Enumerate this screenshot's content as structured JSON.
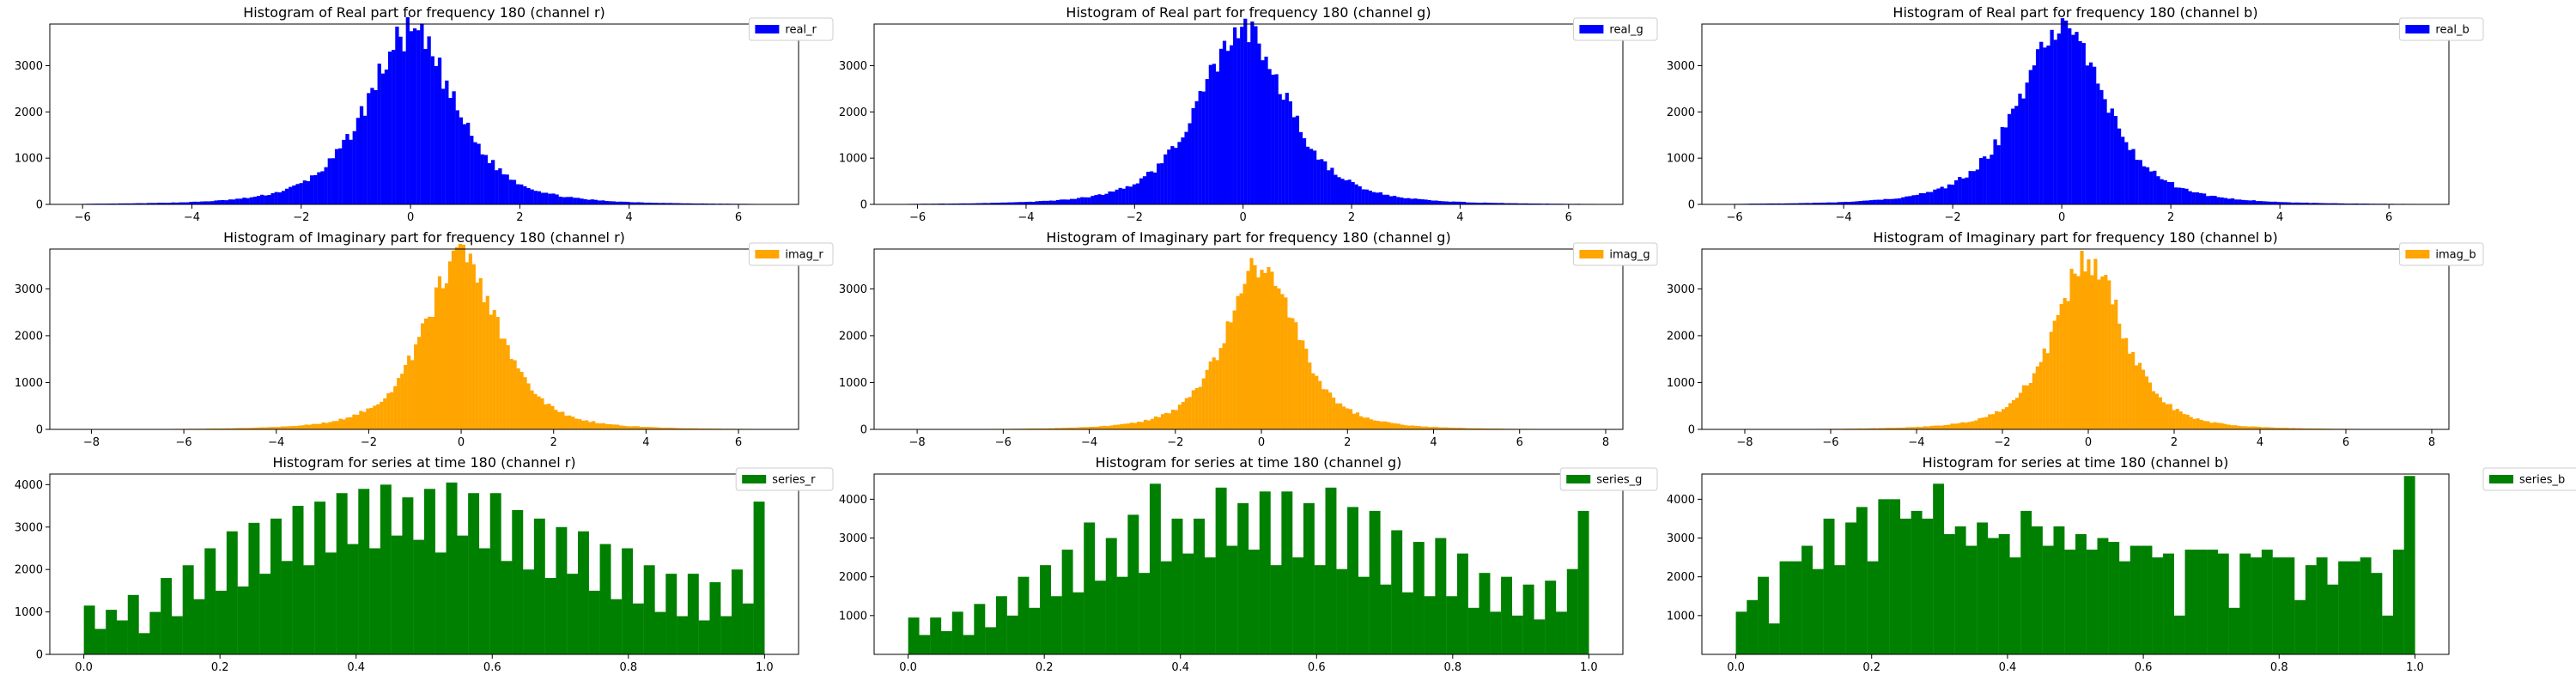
{
  "chart_data": [
    {
      "type": "bar",
      "title": "Histogram of Real part for frequency 180 (channel r)",
      "xlabel": "",
      "ylabel": "",
      "xlim": [
        -6.6,
        7.1
      ],
      "ylim": [
        0,
        3900
      ],
      "xticks": [
        -6,
        -4,
        -2,
        0,
        2,
        4,
        6
      ],
      "yticks": [
        0,
        1000,
        2000,
        3000
      ],
      "color": "#0000ff",
      "legend": {
        "label": "real_r",
        "position": "top-right"
      },
      "distribution": {
        "kind": "normal",
        "center": 0.0,
        "spread": 0.85,
        "peak": 3700,
        "range": [
          -6.0,
          7.0
        ],
        "bins": 200,
        "peaks_near_center": [
          3650,
          3700,
          3600,
          3500,
          3400
        ]
      }
    },
    {
      "type": "bar",
      "title": "Histogram of Real part for frequency 180 (channel g)",
      "xlabel": "",
      "ylabel": "",
      "xlim": [
        -6.8,
        7.0
      ],
      "ylim": [
        0,
        3900
      ],
      "xticks": [
        -6,
        -4,
        -2,
        0,
        2,
        4,
        6
      ],
      "yticks": [
        0,
        1000,
        2000,
        3000
      ],
      "color": "#0000ff",
      "legend": {
        "label": "real_g",
        "position": "top-right"
      },
      "distribution": {
        "kind": "normal",
        "center": 0.0,
        "spread": 0.85,
        "peak": 3750,
        "range": [
          -6.2,
          6.6
        ],
        "bins": 200,
        "peaks_near_center": [
          3750,
          3650,
          3550,
          3450,
          3300
        ]
      }
    },
    {
      "type": "bar",
      "title": "Histogram of Real part for frequency 180 (channel b)",
      "xlabel": "",
      "ylabel": "",
      "xlim": [
        -6.6,
        7.1
      ],
      "ylim": [
        0,
        3900
      ],
      "xticks": [
        -6,
        -4,
        -2,
        0,
        2,
        4,
        6
      ],
      "yticks": [
        0,
        1000,
        2000,
        3000
      ],
      "color": "#0000ff",
      "legend": {
        "label": "real_b",
        "position": "top-right"
      },
      "distribution": {
        "kind": "normal",
        "center": 0.0,
        "spread": 0.85,
        "peak": 3700,
        "range": [
          -6.0,
          7.0
        ],
        "bins": 200,
        "peaks_near_center": [
          3700,
          3600,
          3500,
          3400,
          3300
        ]
      }
    },
    {
      "type": "bar",
      "title": "Histogram of Imaginary part for frequency 180 (channel r)",
      "xlabel": "",
      "ylabel": "",
      "xlim": [
        -8.9,
        7.3
      ],
      "ylim": [
        0,
        3850
      ],
      "xticks": [
        -8,
        -6,
        -4,
        -2,
        0,
        2,
        4,
        6
      ],
      "yticks": [
        0,
        1000,
        2000,
        3000
      ],
      "color": "#ffa500",
      "legend": {
        "label": "imag_r",
        "position": "top-right"
      },
      "distribution": {
        "kind": "normal",
        "center": 0.0,
        "spread": 0.85,
        "peak": 3650,
        "range": [
          -8.2,
          6.6
        ],
        "bins": 200,
        "peaks_near_center": [
          3650,
          3550,
          3450,
          3350,
          3250
        ]
      }
    },
    {
      "type": "bar",
      "title": "Histogram of Imaginary part for frequency 180 (channel g)",
      "xlabel": "",
      "ylabel": "",
      "xlim": [
        -9.0,
        8.4
      ],
      "ylim": [
        0,
        3850
      ],
      "xticks": [
        -8,
        -6,
        -4,
        -2,
        0,
        2,
        4,
        6,
        8
      ],
      "yticks": [
        0,
        1000,
        2000,
        3000
      ],
      "color": "#ffa500",
      "legend": {
        "label": "imag_g",
        "position": "top-right"
      },
      "distribution": {
        "kind": "normal",
        "center": 0.0,
        "spread": 0.85,
        "peak": 3600,
        "range": [
          -8.3,
          7.6
        ],
        "bins": 200,
        "peaks_near_center": [
          3600,
          3550,
          3500,
          3400,
          3300
        ]
      }
    },
    {
      "type": "bar",
      "title": "Histogram of Imaginary part for frequency 180 (channel b)",
      "xlabel": "",
      "ylabel": "",
      "xlim": [
        -9.0,
        8.4
      ],
      "ylim": [
        0,
        3850
      ],
      "xticks": [
        -8,
        -6,
        -4,
        -2,
        0,
        2,
        4,
        6,
        8
      ],
      "yticks": [
        0,
        1000,
        2000,
        3000
      ],
      "color": "#ffa500",
      "legend": {
        "label": "imag_b",
        "position": "top-right"
      },
      "distribution": {
        "kind": "normal",
        "center": 0.0,
        "spread": 0.85,
        "peak": 3600,
        "range": [
          -8.3,
          7.6
        ],
        "bins": 200,
        "peaks_near_center": [
          3600,
          3550,
          3450,
          3350,
          3250
        ]
      }
    },
    {
      "type": "bar",
      "title": "Histogram for series at time 180 (channel r)",
      "xlabel": "",
      "ylabel": "",
      "xlim": [
        -0.05,
        1.05
      ],
      "ylim": [
        0,
        4250
      ],
      "xticks": [
        0.0,
        0.2,
        0.4,
        0.6,
        0.8,
        1.0
      ],
      "yticks": [
        0,
        1000,
        2000,
        3000,
        4000
      ],
      "color": "#008000",
      "legend": {
        "label": "series_r",
        "position": "top-right"
      },
      "bin_range": [
        0.0,
        1.0
      ],
      "values": [
        1150,
        600,
        1050,
        800,
        1400,
        500,
        1000,
        1800,
        900,
        2100,
        1300,
        2500,
        1500,
        2900,
        1600,
        3100,
        1900,
        3200,
        2200,
        3500,
        2100,
        3600,
        2400,
        3800,
        2600,
        3900,
        2500,
        4000,
        2800,
        3700,
        2700,
        3900,
        2400,
        4050,
        2800,
        3800,
        2500,
        3800,
        2200,
        3400,
        2000,
        3200,
        1800,
        3000,
        1900,
        2900,
        1500,
        2600,
        1300,
        2500,
        1200,
        2100,
        1000,
        1900,
        900,
        1900,
        800,
        1700,
        900,
        2000,
        1200,
        3600
      ]
    },
    {
      "type": "bar",
      "title": "Histogram for series at time 180 (channel g)",
      "xlabel": "",
      "ylabel": "",
      "xlim": [
        -0.05,
        1.05
      ],
      "ylim": [
        0,
        4650
      ],
      "xticks": [
        0.0,
        0.2,
        0.4,
        0.6,
        0.8,
        1.0
      ],
      "yticks": [
        1000,
        2000,
        3000,
        4000
      ],
      "color": "#008000",
      "legend": {
        "label": "series_g",
        "position": "top-right"
      },
      "bin_range": [
        0.0,
        1.0
      ],
      "values": [
        950,
        500,
        950,
        600,
        1100,
        500,
        1300,
        700,
        1500,
        1000,
        2000,
        1200,
        2300,
        1500,
        2700,
        1600,
        3400,
        1900,
        3000,
        2000,
        3600,
        2100,
        4400,
        2400,
        3500,
        2600,
        3500,
        2500,
        4300,
        2800,
        3900,
        2700,
        4200,
        2300,
        4200,
        2500,
        3900,
        2300,
        4300,
        2200,
        3800,
        2000,
        3700,
        1800,
        3200,
        1600,
        2900,
        1500,
        3000,
        1500,
        2600,
        1200,
        2100,
        1100,
        2000,
        1000,
        1800,
        900,
        1900,
        1100,
        2200,
        3700
      ]
    },
    {
      "type": "bar",
      "title": "Histogram for series at time 180 (channel b)",
      "xlabel": "",
      "ylabel": "",
      "xlim": [
        -0.05,
        1.05
      ],
      "ylim": [
        0,
        4650
      ],
      "xticks": [
        0.0,
        0.2,
        0.4,
        0.6,
        0.8,
        1.0
      ],
      "yticks": [
        1000,
        2000,
        3000,
        4000
      ],
      "color": "#008000",
      "legend": {
        "label": "series_b",
        "position": "outside-right"
      },
      "bin_range": [
        0.0,
        1.0
      ],
      "values": [
        1100,
        1400,
        2000,
        800,
        2400,
        2400,
        2800,
        2200,
        3500,
        2300,
        3400,
        3800,
        2400,
        4000,
        4000,
        3500,
        3700,
        3500,
        4400,
        3100,
        3300,
        2800,
        3400,
        3000,
        3100,
        2500,
        3700,
        3300,
        2800,
        3300,
        2700,
        3100,
        2700,
        3000,
        2900,
        2400,
        2800,
        2800,
        2500,
        2600,
        1000,
        2700,
        2700,
        2700,
        2600,
        1200,
        2600,
        2500,
        2700,
        2500,
        2500,
        1400,
        2300,
        2500,
        1800,
        2400,
        2400,
        2500,
        2100,
        1000,
        2700,
        4600
      ]
    }
  ]
}
